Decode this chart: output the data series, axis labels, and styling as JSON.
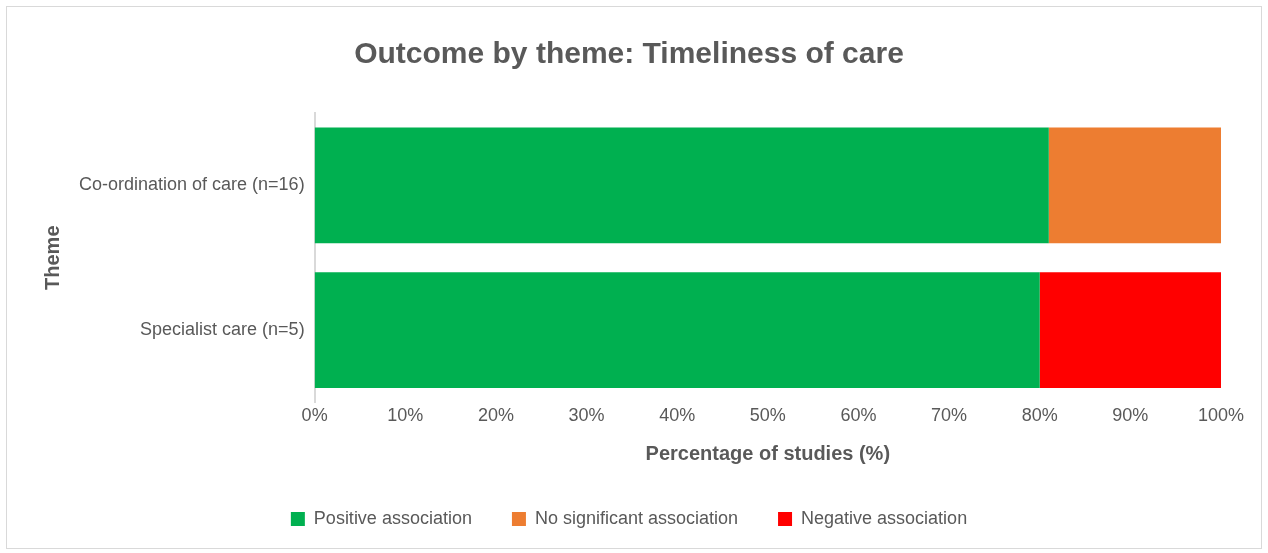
{
  "chart_data": {
    "type": "bar",
    "orientation": "horizontal",
    "stacked": true,
    "title": "Outcome by theme: Timeliness of care",
    "xlabel": "Percentage of studies (%)",
    "ylabel": "Theme",
    "categories": [
      "Co-ordination of care (n=16)",
      "Specialist care (n=5)"
    ],
    "series": [
      {
        "name": "Positive association",
        "color": "#00b050",
        "values": [
          81,
          80
        ]
      },
      {
        "name": "No significant association",
        "color": "#ed7d31",
        "values": [
          19,
          null
        ]
      },
      {
        "name": "Negative association",
        "color": "#ff0000",
        "values": [
          null,
          20
        ]
      }
    ],
    "xlim": [
      0,
      100
    ],
    "xticks": [
      {
        "value": 0,
        "label": "0%"
      },
      {
        "value": 10,
        "label": "10%"
      },
      {
        "value": 20,
        "label": "20%"
      },
      {
        "value": 30,
        "label": "30%"
      },
      {
        "value": 40,
        "label": "40%"
      },
      {
        "value": 50,
        "label": "50%"
      },
      {
        "value": 60,
        "label": "60%"
      },
      {
        "value": 70,
        "label": "70%"
      },
      {
        "value": 80,
        "label": "80%"
      },
      {
        "value": 90,
        "label": "90%"
      },
      {
        "value": 100,
        "label": "100%"
      }
    ],
    "grid": false,
    "legend": "bottom"
  }
}
